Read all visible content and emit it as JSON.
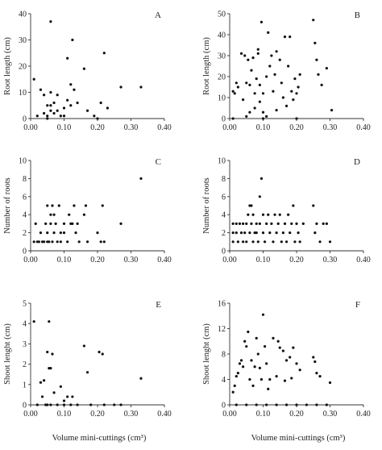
{
  "chart_data": [
    {
      "type": "scatter",
      "panel": "A",
      "ylabel": "Root length",
      "yunit": "(cm)",
      "xlabel": "",
      "xlim": [
        0,
        0.4
      ],
      "ylim": [
        0,
        40
      ],
      "xticks": [
        "0.00",
        "0.10",
        "0.20",
        "0.30",
        "0.40"
      ],
      "yticks": [
        "0",
        "10",
        "20",
        "30",
        "40"
      ],
      "points": [
        [
          0.01,
          15
        ],
        [
          0.02,
          1
        ],
        [
          0.03,
          11
        ],
        [
          0.04,
          9
        ],
        [
          0.04,
          2
        ],
        [
          0.05,
          5
        ],
        [
          0.05,
          1
        ],
        [
          0.05,
          0
        ],
        [
          0.06,
          37
        ],
        [
          0.06,
          10
        ],
        [
          0.06,
          5
        ],
        [
          0.06,
          3
        ],
        [
          0.07,
          6
        ],
        [
          0.07,
          2
        ],
        [
          0.08,
          9
        ],
        [
          0.08,
          3
        ],
        [
          0.09,
          1
        ],
        [
          0.1,
          4
        ],
        [
          0.1,
          1
        ],
        [
          0.11,
          7
        ],
        [
          0.11,
          23
        ],
        [
          0.12,
          13
        ],
        [
          0.12,
          5
        ],
        [
          0.125,
          30
        ],
        [
          0.13,
          11
        ],
        [
          0.14,
          6
        ],
        [
          0.16,
          19
        ],
        [
          0.17,
          3
        ],
        [
          0.19,
          1
        ],
        [
          0.2,
          0
        ],
        [
          0.21,
          6
        ],
        [
          0.22,
          25
        ],
        [
          0.23,
          4
        ],
        [
          0.27,
          12
        ],
        [
          0.33,
          12
        ]
      ]
    },
    {
      "type": "scatter",
      "panel": "B",
      "ylabel": "Root length",
      "yunit": "(cm)",
      "xlabel": "",
      "xlim": [
        0,
        0.4
      ],
      "ylim": [
        0,
        50
      ],
      "xticks": [
        "0.00",
        "0.10",
        "0.20",
        "0.30",
        "0.40"
      ],
      "yticks": [
        "0",
        "10",
        "20",
        "30",
        "40",
        "50"
      ],
      "points": [
        [
          0.01,
          13
        ],
        [
          0.015,
          12
        ],
        [
          0.02,
          17
        ],
        [
          0.025,
          15
        ],
        [
          0.035,
          31
        ],
        [
          0.04,
          9
        ],
        [
          0.045,
          30
        ],
        [
          0.05,
          17
        ],
        [
          0.05,
          1
        ],
        [
          0.055,
          28
        ],
        [
          0.06,
          16
        ],
        [
          0.06,
          3
        ],
        [
          0.065,
          23
        ],
        [
          0.07,
          29
        ],
        [
          0.075,
          12
        ],
        [
          0.075,
          5
        ],
        [
          0.08,
          19
        ],
        [
          0.085,
          33
        ],
        [
          0.085,
          31
        ],
        [
          0.09,
          16
        ],
        [
          0.09,
          8
        ],
        [
          0.095,
          46
        ],
        [
          0.1,
          12
        ],
        [
          0.1,
          3
        ],
        [
          0.11,
          20
        ],
        [
          0.11,
          1
        ],
        [
          0.115,
          41
        ],
        [
          0.12,
          25
        ],
        [
          0.125,
          30
        ],
        [
          0.13,
          13
        ],
        [
          0.135,
          21
        ],
        [
          0.14,
          32
        ],
        [
          0.14,
          4
        ],
        [
          0.15,
          28
        ],
        [
          0.155,
          17
        ],
        [
          0.16,
          10
        ],
        [
          0.165,
          39
        ],
        [
          0.17,
          6
        ],
        [
          0.175,
          25
        ],
        [
          0.18,
          39
        ],
        [
          0.185,
          13
        ],
        [
          0.19,
          9
        ],
        [
          0.195,
          19
        ],
        [
          0.2,
          12
        ],
        [
          0.205,
          15
        ],
        [
          0.21,
          21
        ],
        [
          0.25,
          47
        ],
        [
          0.255,
          36
        ],
        [
          0.26,
          28
        ],
        [
          0.265,
          21
        ],
        [
          0.275,
          16
        ],
        [
          0.29,
          24
        ],
        [
          0.305,
          4
        ],
        [
          0.01,
          0
        ],
        [
          0.1,
          0
        ],
        [
          0.2,
          0
        ]
      ]
    },
    {
      "type": "scatter",
      "panel": "C",
      "ylabel": "Number of roots",
      "xlabel": "",
      "xlim": [
        0,
        0.4
      ],
      "ylim": [
        0,
        10
      ],
      "xticks": [
        "0.00",
        "0.10",
        "0.20",
        "0.30",
        "0.40"
      ],
      "yticks": [
        "0",
        "2",
        "4",
        "6",
        "8",
        "10"
      ],
      "points": [
        [
          0.01,
          1
        ],
        [
          0.015,
          3
        ],
        [
          0.02,
          1
        ],
        [
          0.025,
          1
        ],
        [
          0.03,
          2
        ],
        [
          0.035,
          1
        ],
        [
          0.04,
          1
        ],
        [
          0.045,
          3
        ],
        [
          0.05,
          5
        ],
        [
          0.05,
          2
        ],
        [
          0.05,
          1
        ],
        [
          0.055,
          1
        ],
        [
          0.06,
          4
        ],
        [
          0.06,
          3
        ],
        [
          0.065,
          5
        ],
        [
          0.065,
          1
        ],
        [
          0.07,
          4
        ],
        [
          0.07,
          2
        ],
        [
          0.075,
          3
        ],
        [
          0.08,
          1
        ],
        [
          0.085,
          5
        ],
        [
          0.09,
          2
        ],
        [
          0.09,
          1
        ],
        [
          0.1,
          3
        ],
        [
          0.1,
          2
        ],
        [
          0.11,
          1
        ],
        [
          0.115,
          4
        ],
        [
          0.12,
          3
        ],
        [
          0.125,
          3
        ],
        [
          0.13,
          5
        ],
        [
          0.135,
          2
        ],
        [
          0.14,
          3
        ],
        [
          0.145,
          1
        ],
        [
          0.16,
          4
        ],
        [
          0.165,
          5
        ],
        [
          0.17,
          1
        ],
        [
          0.2,
          2
        ],
        [
          0.21,
          1
        ],
        [
          0.215,
          5
        ],
        [
          0.22,
          1
        ],
        [
          0.27,
          3
        ],
        [
          0.33,
          8
        ]
      ]
    },
    {
      "type": "scatter",
      "panel": "D",
      "ylabel": "Number of roots",
      "xlabel": "",
      "xlim": [
        0,
        0.4
      ],
      "ylim": [
        0,
        10
      ],
      "xticks": [
        "0.00",
        "0.10",
        "0.20",
        "0.30",
        "0.40"
      ],
      "yticks": [
        "0",
        "2",
        "4",
        "6",
        "8",
        "10"
      ],
      "points": [
        [
          0.01,
          3
        ],
        [
          0.01,
          2
        ],
        [
          0.01,
          1
        ],
        [
          0.02,
          3
        ],
        [
          0.02,
          2
        ],
        [
          0.025,
          1
        ],
        [
          0.03,
          3
        ],
        [
          0.035,
          2
        ],
        [
          0.04,
          3
        ],
        [
          0.04,
          1
        ],
        [
          0.045,
          2
        ],
        [
          0.05,
          3
        ],
        [
          0.05,
          1
        ],
        [
          0.055,
          4
        ],
        [
          0.06,
          5
        ],
        [
          0.06,
          2
        ],
        [
          0.065,
          5
        ],
        [
          0.065,
          3
        ],
        [
          0.07,
          4
        ],
        [
          0.07,
          1
        ],
        [
          0.075,
          2
        ],
        [
          0.08,
          3
        ],
        [
          0.08,
          2
        ],
        [
          0.085,
          1
        ],
        [
          0.09,
          6
        ],
        [
          0.09,
          3
        ],
        [
          0.095,
          8
        ],
        [
          0.1,
          4
        ],
        [
          0.1,
          2
        ],
        [
          0.105,
          1
        ],
        [
          0.11,
          3
        ],
        [
          0.115,
          4
        ],
        [
          0.12,
          2
        ],
        [
          0.125,
          3
        ],
        [
          0.13,
          1
        ],
        [
          0.135,
          4
        ],
        [
          0.14,
          2
        ],
        [
          0.145,
          3
        ],
        [
          0.15,
          4
        ],
        [
          0.155,
          1
        ],
        [
          0.16,
          2
        ],
        [
          0.165,
          3
        ],
        [
          0.17,
          1
        ],
        [
          0.175,
          4
        ],
        [
          0.18,
          2
        ],
        [
          0.185,
          3
        ],
        [
          0.19,
          5
        ],
        [
          0.195,
          1
        ],
        [
          0.2,
          3
        ],
        [
          0.205,
          2
        ],
        [
          0.21,
          1
        ],
        [
          0.22,
          3
        ],
        [
          0.25,
          5
        ],
        [
          0.255,
          2
        ],
        [
          0.26,
          3
        ],
        [
          0.27,
          1
        ],
        [
          0.28,
          3
        ],
        [
          0.29,
          3
        ],
        [
          0.3,
          1
        ]
      ]
    },
    {
      "type": "scatter",
      "panel": "E",
      "ylabel": "Shoot lenght",
      "yunit": "(cm)",
      "xlabel": "Volume mini-cuttings (cm³)",
      "xlim": [
        0,
        0.4
      ],
      "ylim": [
        0,
        5
      ],
      "xticks": [
        "0.00",
        "0.10",
        "0.20",
        "0.30",
        "0.40"
      ],
      "yticks": [
        "0",
        "1",
        "2",
        "3",
        "4",
        "5"
      ],
      "points": [
        [
          0.01,
          4.1
        ],
        [
          0.02,
          0
        ],
        [
          0.03,
          1.1
        ],
        [
          0.035,
          0.4
        ],
        [
          0.04,
          1.2
        ],
        [
          0.045,
          0
        ],
        [
          0.05,
          2.6
        ],
        [
          0.05,
          0
        ],
        [
          0.055,
          4.1
        ],
        [
          0.055,
          1.8
        ],
        [
          0.06,
          1.8
        ],
        [
          0.06,
          0
        ],
        [
          0.065,
          2.5
        ],
        [
          0.07,
          0.6
        ],
        [
          0.08,
          0
        ],
        [
          0.09,
          0.9
        ],
        [
          0.1,
          0.2
        ],
        [
          0.1,
          0
        ],
        [
          0.11,
          0.4
        ],
        [
          0.12,
          0
        ],
        [
          0.125,
          0.4
        ],
        [
          0.14,
          0
        ],
        [
          0.16,
          2.9
        ],
        [
          0.17,
          1.6
        ],
        [
          0.18,
          0
        ],
        [
          0.205,
          2.6
        ],
        [
          0.215,
          2.5
        ],
        [
          0.22,
          0
        ],
        [
          0.25,
          0
        ],
        [
          0.27,
          0
        ],
        [
          0.33,
          1.3
        ]
      ]
    },
    {
      "type": "scatter",
      "panel": "F",
      "ylabel": "Shoot lenght",
      "yunit": "(cm)",
      "xlabel": "Volume mini-cuttings (cm³)",
      "xlim": [
        0,
        0.4
      ],
      "ylim": [
        0,
        16
      ],
      "xticks": [
        "0.00",
        "0.10",
        "0.20",
        "0.30",
        "0.40"
      ],
      "yticks": [
        "0",
        "4",
        "8",
        "12",
        "16"
      ],
      "points": [
        [
          0.01,
          2
        ],
        [
          0.015,
          3
        ],
        [
          0.02,
          4.5
        ],
        [
          0.025,
          5
        ],
        [
          0.03,
          6.5
        ],
        [
          0.035,
          7
        ],
        [
          0.04,
          6
        ],
        [
          0.045,
          10
        ],
        [
          0.05,
          9.2
        ],
        [
          0.055,
          11.5
        ],
        [
          0.06,
          4
        ],
        [
          0.065,
          7
        ],
        [
          0.07,
          3
        ],
        [
          0.075,
          6
        ],
        [
          0.08,
          10.5
        ],
        [
          0.085,
          8
        ],
        [
          0.09,
          5.8
        ],
        [
          0.095,
          4
        ],
        [
          0.1,
          14.2
        ],
        [
          0.105,
          9.2
        ],
        [
          0.11,
          6.5
        ],
        [
          0.115,
          2.5
        ],
        [
          0.12,
          4
        ],
        [
          0.13,
          10.5
        ],
        [
          0.14,
          4.5
        ],
        [
          0.145,
          10
        ],
        [
          0.15,
          9
        ],
        [
          0.16,
          8.5
        ],
        [
          0.165,
          3.8
        ],
        [
          0.17,
          7
        ],
        [
          0.18,
          7.5
        ],
        [
          0.185,
          4.2
        ],
        [
          0.19,
          9
        ],
        [
          0.2,
          6.5
        ],
        [
          0.21,
          5.5
        ],
        [
          0.25,
          7.5
        ],
        [
          0.255,
          6.8
        ],
        [
          0.26,
          5
        ],
        [
          0.27,
          4.5
        ],
        [
          0.3,
          3.5
        ],
        [
          0.02,
          0
        ],
        [
          0.05,
          0
        ],
        [
          0.08,
          0
        ],
        [
          0.11,
          0
        ],
        [
          0.14,
          0
        ],
        [
          0.17,
          0
        ],
        [
          0.2,
          0
        ],
        [
          0.23,
          0
        ],
        [
          0.26,
          0
        ],
        [
          0.29,
          0
        ]
      ]
    }
  ]
}
